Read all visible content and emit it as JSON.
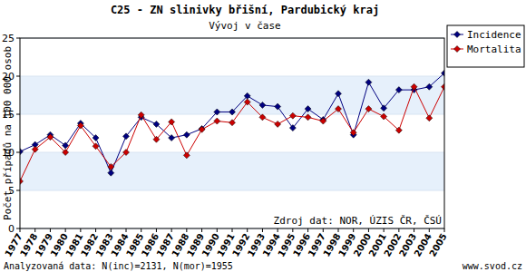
{
  "chart_data": {
    "type": "line",
    "title": "C25 - ZN slinivky břišní, Pardubický kraj",
    "subtitle": "Vývoj v čase",
    "y_label": "Počet případů na 100 000 osob",
    "source": "Zdroj dat: NOR, ÚZIS ČR, ČSÚ",
    "footer_left": "Analyzovaná data: N(inc)=2131, N(mor)=1955",
    "footer_right": "www.svod.cz",
    "categories": [
      "1977",
      "1978",
      "1979",
      "1980",
      "1981",
      "1982",
      "1983",
      "1984",
      "1985",
      "1986",
      "1987",
      "1988",
      "1989",
      "1990",
      "1991",
      "1992",
      "1993",
      "1994",
      "1995",
      "1996",
      "1997",
      "1998",
      "1999",
      "2000",
      "2001",
      "2002",
      "2003",
      "2004",
      "2005"
    ],
    "series": [
      {
        "name": "Incidence",
        "color": "#000080",
        "marker": "diamond",
        "values": [
          10.1,
          11.0,
          12.3,
          10.9,
          13.8,
          11.9,
          7.3,
          12.1,
          14.6,
          13.7,
          11.9,
          12.3,
          13.1,
          15.3,
          15.3,
          17.4,
          16.2,
          16.0,
          13.2,
          15.7,
          14.3,
          17.7,
          12.3,
          19.2,
          15.8,
          18.2,
          18.2,
          18.6,
          20.4
        ]
      },
      {
        "name": "Mortalita",
        "color": "#cc0000",
        "marker": "diamond",
        "values": [
          6.2,
          10.4,
          12.0,
          10.0,
          13.5,
          10.8,
          8.1,
          10.0,
          14.9,
          11.7,
          14.0,
          9.6,
          13.0,
          14.1,
          13.9,
          16.6,
          14.6,
          13.7,
          14.8,
          14.6,
          14.1,
          15.7,
          12.6,
          15.7,
          14.7,
          12.9,
          18.6,
          14.5,
          18.6
        ]
      }
    ],
    "ylim": [
      0,
      25
    ],
    "yticks": [
      0,
      5,
      10,
      15,
      20,
      25
    ],
    "grid": true,
    "legend": "top-right"
  }
}
